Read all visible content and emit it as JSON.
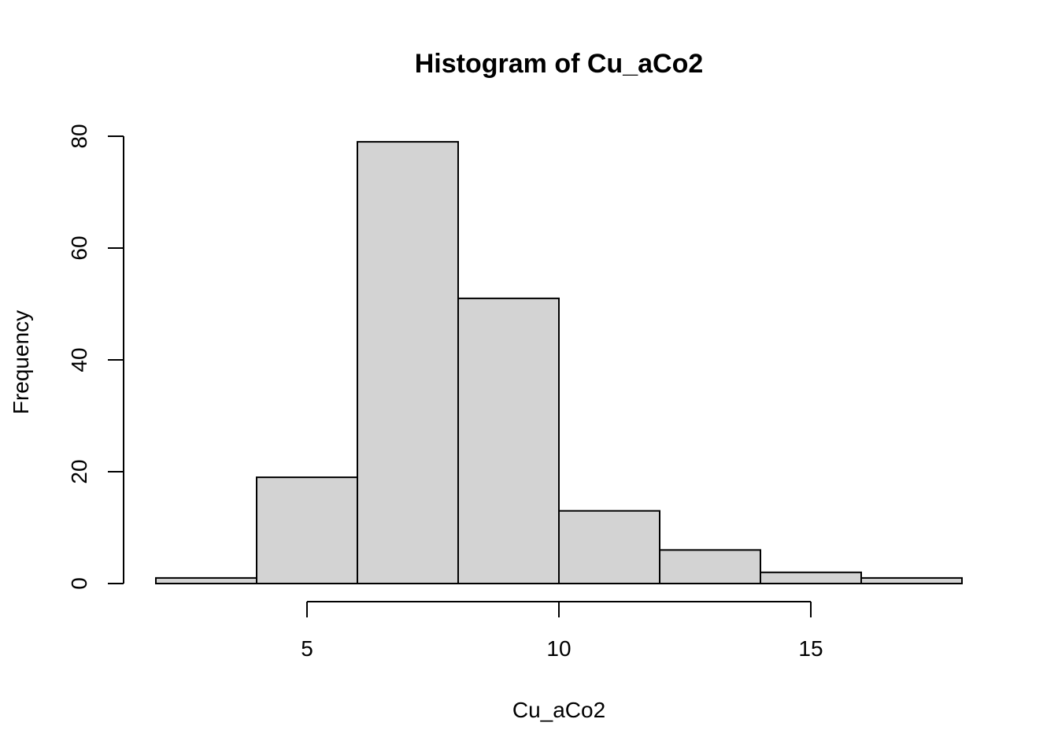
{
  "chart_data": {
    "type": "bar",
    "title": "Histogram of Cu_aCo2",
    "xlabel": "Cu_aCo2",
    "ylabel": "Frequency",
    "bins": [
      {
        "start": 2,
        "end": 4,
        "count": 1
      },
      {
        "start": 4,
        "end": 6,
        "count": 19
      },
      {
        "start": 6,
        "end": 8,
        "count": 79
      },
      {
        "start": 8,
        "end": 10,
        "count": 51
      },
      {
        "start": 10,
        "end": 12,
        "count": 13
      },
      {
        "start": 12,
        "end": 14,
        "count": 6
      },
      {
        "start": 14,
        "end": 16,
        "count": 2
      },
      {
        "start": 16,
        "end": 18,
        "count": 1
      }
    ],
    "xlim": [
      2,
      18
    ],
    "ylim": [
      0,
      80
    ],
    "xticks": [
      5,
      10,
      15
    ],
    "xtick_labels": [
      "5",
      "10",
      "15"
    ],
    "yticks": [
      0,
      20,
      40,
      60,
      80
    ],
    "ytick_labels": [
      "0",
      "20",
      "40",
      "60",
      "80"
    ],
    "bar_color": "#d3d3d3",
    "edge_color": "#000000",
    "grid": false,
    "legend": false
  }
}
